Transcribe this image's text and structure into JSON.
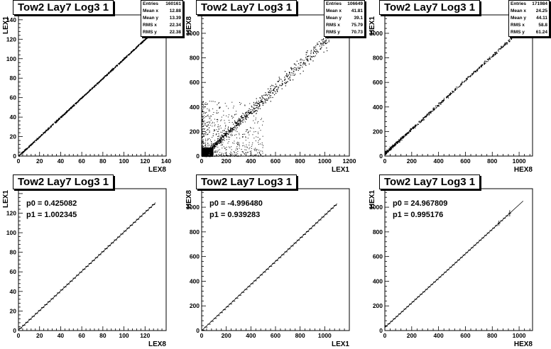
{
  "pads": [
    {
      "id": "p1",
      "kind": "scatter",
      "title": "Tow2 Lay7 Log3 1",
      "xlabel": "LEX8",
      "ylabel": "LEX1",
      "stats": [
        {
          "label": "Entries",
          "value": "160161"
        },
        {
          "label": "Mean x",
          "value": "12.88"
        },
        {
          "label": "Mean y",
          "value": "13.39"
        },
        {
          "label": "RMS x",
          "value": "22.34"
        },
        {
          "label": "RMS y",
          "value": "22.38"
        }
      ],
      "fit": []
    },
    {
      "id": "p2",
      "kind": "scatter",
      "title": "Tow2 Lay7 Log3 1",
      "xlabel": "LEX1",
      "ylabel": "HEX8",
      "stats": [
        {
          "label": "Entries",
          "value": "106649"
        },
        {
          "label": "Mean x",
          "value": "41.81"
        },
        {
          "label": "Mean y",
          "value": "39.1"
        },
        {
          "label": "RMS x",
          "value": "75.79"
        },
        {
          "label": "RMS y",
          "value": "70.73"
        }
      ],
      "fit": []
    },
    {
      "id": "p3",
      "kind": "scatter",
      "title": "Tow2 Lay7 Log3 1",
      "xlabel": "HEX8",
      "ylabel": "HEX1",
      "stats": [
        {
          "label": "Entries",
          "value": "171984"
        },
        {
          "label": "Mean x",
          "value": "24.25"
        },
        {
          "label": "Mean y",
          "value": "44.11"
        },
        {
          "label": "RMS x",
          "value": "58.8"
        },
        {
          "label": "RMS y",
          "value": "61.24"
        }
      ],
      "fit": []
    },
    {
      "id": "p4",
      "kind": "profile",
      "title": "Tow2 Lay7 Log3 1",
      "xlabel": "LEX8",
      "ylabel": "LEX1",
      "stats": [],
      "fit": [
        "p0 = 0.425082",
        "p1 = 1.002345"
      ]
    },
    {
      "id": "p5",
      "kind": "profile",
      "title": "Tow2 Lay7 Log3 1",
      "xlabel": "LEX1",
      "ylabel": "HEX8",
      "stats": [],
      "fit": [
        "p0 = -4.996480",
        "p1 = 0.939283"
      ]
    },
    {
      "id": "p6",
      "kind": "profile",
      "title": "Tow2 Lay7 Log3 1",
      "xlabel": "HEX8",
      "ylabel": "HEX1",
      "stats": [],
      "fit": [
        "p0 = 24.967809",
        "p1 = 0.995176"
      ]
    }
  ],
  "chart_data": [
    {
      "type": "scatter",
      "title": "Tow2 Lay7 Log3 1",
      "xlabel": "LEX8",
      "ylabel": "LEX1",
      "xlim": [
        0,
        140
      ],
      "ylim": [
        0,
        145
      ],
      "xticks": [
        0,
        20,
        40,
        60,
        80,
        100,
        120,
        140
      ],
      "yticks": [
        0,
        20,
        40,
        60,
        80,
        100,
        120,
        140
      ],
      "trend": {
        "slope": 1.0,
        "intercept": 0.4,
        "x_range": [
          0,
          125
        ],
        "spread": 0.8
      },
      "noise_cloud": null
    },
    {
      "type": "scatter",
      "title": "Tow2 Lay7 Log3 1",
      "xlabel": "LEX1",
      "ylabel": "HEX8",
      "xlim": [
        0,
        1200
      ],
      "ylim": [
        0,
        1150
      ],
      "xticks": [
        0,
        200,
        400,
        600,
        800,
        1000,
        1200
      ],
      "yticks": [
        0,
        200,
        400,
        600,
        800,
        1000
      ],
      "trend": {
        "slope": 0.94,
        "intercept": -5,
        "x_range": [
          0,
          1050
        ],
        "spread": 60
      },
      "noise_cloud": {
        "x_range": [
          0,
          500
        ],
        "y_range": [
          0,
          450
        ]
      }
    },
    {
      "type": "scatter",
      "title": "Tow2 Lay7 Log3 1",
      "xlabel": "HEX8",
      "ylabel": "HEX1",
      "xlim": [
        0,
        1100
      ],
      "ylim": [
        0,
        1150
      ],
      "xticks": [
        0,
        200,
        400,
        600,
        800,
        1000
      ],
      "yticks": [
        0,
        200,
        400,
        600,
        800,
        1000
      ],
      "trend": {
        "slope": 0.995,
        "intercept": 25,
        "x_range": [
          0,
          1000
        ],
        "spread": 12
      },
      "noise_cloud": null
    },
    {
      "type": "line",
      "title": "Tow2 Lay7 Log3 1",
      "xlabel": "LEX8",
      "ylabel": "LEX1",
      "xlim": [
        0,
        140
      ],
      "ylim": [
        0,
        145
      ],
      "xticks": [
        0,
        20,
        40,
        60,
        80,
        100,
        120
      ],
      "yticks": [
        0,
        20,
        40,
        60,
        80,
        100,
        120
      ],
      "fit_line": {
        "p0": 0.425082,
        "p1": 1.002345,
        "x_range": [
          0,
          130
        ]
      },
      "profile": {
        "x_start": 2,
        "x_end": 130,
        "step": 3,
        "errors": []
      }
    },
    {
      "type": "line",
      "title": "Tow2 Lay7 Log3 1",
      "xlabel": "LEX1",
      "ylabel": "HEX8",
      "xlim": [
        0,
        1200
      ],
      "ylim": [
        0,
        1150
      ],
      "xticks": [
        0,
        200,
        400,
        600,
        800,
        1000
      ],
      "yticks": [
        0,
        200,
        400,
        600,
        800,
        1000
      ],
      "fit_line": {
        "p0": -4.99648,
        "p1": 0.939283,
        "x_range": [
          0,
          1100
        ]
      },
      "profile": {
        "x_start": 10,
        "x_end": 1100,
        "step": 25,
        "errors": [
          [
            700,
            60
          ],
          [
            725,
            70
          ],
          [
            750,
            30
          ]
        ]
      }
    },
    {
      "type": "line",
      "title": "Tow2 Lay7 Log3 1",
      "xlabel": "HEX8",
      "ylabel": "HEX1",
      "xlim": [
        0,
        1100
      ],
      "ylim": [
        0,
        1150
      ],
      "xticks": [
        0,
        200,
        400,
        600,
        800,
        1000
      ],
      "yticks": [
        0,
        200,
        400,
        600,
        800,
        1000
      ],
      "fit_line": {
        "p0": 24.967809,
        "p1": 0.995176,
        "x_range": [
          0,
          1030
        ]
      },
      "profile": {
        "x_start": 10,
        "x_end": 940,
        "step": 20,
        "errors": [
          [
            850,
            20
          ],
          [
            930,
            25
          ]
        ]
      }
    }
  ]
}
